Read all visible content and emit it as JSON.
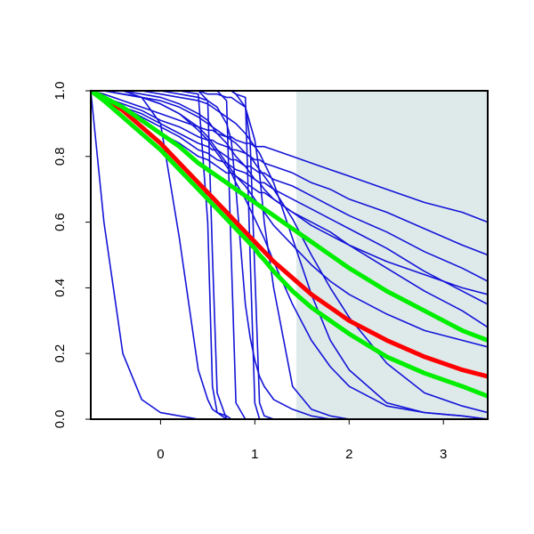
{
  "chart_data": {
    "type": "line",
    "xlim": [
      -0.74,
      3.47
    ],
    "ylim": [
      0,
      1
    ],
    "xticks": [
      0,
      1,
      2,
      3
    ],
    "yticks": [
      {
        "value": 0,
        "label": "0.0"
      },
      {
        "value": 0.2,
        "label": "0.2"
      },
      {
        "value": 0.4,
        "label": "0.4"
      },
      {
        "value": 0.6,
        "label": "0.6"
      },
      {
        "value": 0.8,
        "label": "0.8"
      },
      {
        "value": 1,
        "label": "1.0"
      }
    ],
    "shaded_region": {
      "xmin": 1.44,
      "xmax": 3.47,
      "color": "#deeaea"
    },
    "x": [
      -0.74,
      -0.6,
      -0.4,
      -0.2,
      0,
      0.2,
      0.4,
      0.5,
      0.55,
      0.6,
      0.7,
      0.75,
      0.8,
      0.9,
      0.95,
      1.0,
      1.05,
      1.1,
      1.2,
      1.4,
      1.6,
      1.8,
      2.0,
      2.4,
      2.8,
      3.2,
      3.47
    ],
    "series": [
      {
        "color": "#1414d8",
        "width": 1.6,
        "values": [
          1,
          0.6,
          0.2,
          0.06,
          0.02,
          0.01,
          0,
          0,
          0,
          0,
          0,
          0,
          0,
          0,
          0,
          0,
          0,
          0,
          0,
          0,
          0,
          0,
          0,
          0,
          0,
          0,
          0
        ]
      },
      {
        "color": "#1414d8",
        "width": 1.6,
        "values": [
          1,
          1,
          1,
          0.98,
          0.9,
          0.55,
          0.15,
          0.06,
          0.03,
          0.02,
          0.01,
          0,
          0,
          0,
          0,
          0,
          0,
          0,
          0,
          0,
          0,
          0,
          0,
          0,
          0,
          0,
          0
        ]
      },
      {
        "color": "#1414d8",
        "width": 1.6,
        "values": [
          1,
          1,
          1,
          1,
          1,
          1,
          0.99,
          0.6,
          0.1,
          0.02,
          0,
          0,
          0,
          0,
          0,
          0,
          0,
          0,
          0,
          0,
          0,
          0,
          0,
          0,
          0,
          0,
          0
        ]
      },
      {
        "color": "#1414d8",
        "width": 1.6,
        "values": [
          1,
          1,
          1,
          1,
          1,
          1,
          1,
          0.97,
          0.5,
          0.08,
          0,
          0,
          0,
          0,
          0,
          0,
          0,
          0,
          0,
          0,
          0,
          0,
          0,
          0,
          0,
          0,
          0
        ]
      },
      {
        "color": "#1414d8",
        "width": 1.6,
        "values": [
          1,
          1,
          1,
          1,
          1,
          1,
          1,
          1,
          1,
          1,
          0.97,
          0.5,
          0.05,
          0,
          0,
          0,
          0,
          0,
          0,
          0,
          0,
          0,
          0,
          0,
          0,
          0,
          0
        ]
      },
      {
        "color": "#1414d8",
        "width": 1.6,
        "values": [
          1,
          1,
          1,
          1,
          1,
          1,
          1,
          1,
          1,
          1,
          1,
          1,
          0.99,
          0.98,
          0.5,
          0.05,
          0,
          0,
          0,
          0,
          0,
          0,
          0,
          0,
          0,
          0,
          0
        ]
      },
      {
        "color": "#1414d8",
        "width": 1.6,
        "values": [
          1,
          1,
          1,
          1,
          1,
          1,
          1,
          1,
          1,
          1,
          1,
          1,
          0.99,
          0.95,
          0.85,
          0.45,
          0.05,
          0.01,
          0,
          0,
          0,
          0,
          0,
          0,
          0,
          0,
          0
        ]
      },
      {
        "color": "#1414d8",
        "width": 1.6,
        "values": [
          1,
          1,
          1,
          1,
          1,
          1,
          1,
          0.99,
          0.99,
          0.99,
          0.98,
          0.98,
          0.97,
          0.95,
          0.9,
          0.85,
          0.75,
          0.6,
          0.4,
          0.1,
          0.03,
          0.01,
          0,
          0,
          0,
          0,
          0
        ]
      },
      {
        "color": "#1414d8",
        "width": 1.6,
        "values": [
          1,
          1,
          1,
          1,
          0.99,
          0.98,
          0.97,
          0.96,
          0.95,
          0.94,
          0.92,
          0.91,
          0.9,
          0.87,
          0.85,
          0.83,
          0.81,
          0.78,
          0.72,
          0.55,
          0.38,
          0.24,
          0.15,
          0.05,
          0.02,
          0.01,
          0
        ]
      },
      {
        "color": "#1414d8",
        "width": 1.6,
        "values": [
          1,
          1,
          0.99,
          0.98,
          0.97,
          0.95,
          0.92,
          0.9,
          0.89,
          0.88,
          0.86,
          0.85,
          0.84,
          0.81,
          0.8,
          0.78,
          0.76,
          0.74,
          0.7,
          0.61,
          0.5,
          0.4,
          0.31,
          0.17,
          0.08,
          0.04,
          0.02
        ]
      },
      {
        "color": "#1414d8",
        "width": 1.6,
        "values": [
          1,
          1,
          0.99,
          0.98,
          0.96,
          0.93,
          0.88,
          0.85,
          0.83,
          0.81,
          0.77,
          0.75,
          0.72,
          0.67,
          0.64,
          0.61,
          0.58,
          0.55,
          0.48,
          0.35,
          0.24,
          0.16,
          0.1,
          0.04,
          0.02,
          0.01,
          0
        ]
      },
      {
        "color": "#1414d8",
        "width": 1.6,
        "values": [
          1,
          1,
          1,
          1,
          1,
          0.99,
          0.98,
          0.97,
          0.96,
          0.95,
          0.9,
          0.85,
          0.7,
          0.35,
          0.25,
          0.18,
          0.13,
          0.1,
          0.06,
          0.03,
          0.01,
          0,
          0,
          0,
          0,
          0,
          0
        ]
      },
      {
        "color": "#1414d8",
        "width": 1.6,
        "values": [
          1,
          0.99,
          0.97,
          0.95,
          0.93,
          0.91,
          0.89,
          0.88,
          0.88,
          0.87,
          0.86,
          0.86,
          0.85,
          0.84,
          0.84,
          0.83,
          0.83,
          0.83,
          0.82,
          0.8,
          0.78,
          0.76,
          0.74,
          0.7,
          0.66,
          0.63,
          0.6
        ]
      },
      {
        "color": "#1414d8",
        "width": 1.6,
        "values": [
          1,
          0.98,
          0.96,
          0.94,
          0.91,
          0.89,
          0.86,
          0.85,
          0.85,
          0.84,
          0.83,
          0.82,
          0.82,
          0.81,
          0.8,
          0.79,
          0.79,
          0.78,
          0.77,
          0.75,
          0.72,
          0.7,
          0.67,
          0.63,
          0.58,
          0.53,
          0.5
        ]
      },
      {
        "color": "#1414d8",
        "width": 1.6,
        "values": [
          1,
          0.98,
          0.95,
          0.93,
          0.9,
          0.87,
          0.84,
          0.83,
          0.82,
          0.82,
          0.8,
          0.79,
          0.79,
          0.77,
          0.77,
          0.76,
          0.75,
          0.75,
          0.73,
          0.71,
          0.68,
          0.65,
          0.62,
          0.57,
          0.51,
          0.46,
          0.42
        ]
      },
      {
        "color": "#1414d8",
        "width": 1.6,
        "values": [
          1,
          0.98,
          0.95,
          0.92,
          0.89,
          0.86,
          0.82,
          0.81,
          0.8,
          0.79,
          0.78,
          0.77,
          0.76,
          0.75,
          0.74,
          0.73,
          0.72,
          0.72,
          0.7,
          0.67,
          0.64,
          0.61,
          0.58,
          0.52,
          0.45,
          0.39,
          0.35
        ]
      },
      {
        "color": "#1414d8",
        "width": 1.6,
        "values": [
          1,
          0.98,
          0.94,
          0.91,
          0.87,
          0.84,
          0.8,
          0.79,
          0.78,
          0.77,
          0.75,
          0.75,
          0.74,
          0.72,
          0.71,
          0.7,
          0.69,
          0.69,
          0.67,
          0.63,
          0.6,
          0.57,
          0.53,
          0.46,
          0.39,
          0.33,
          0.28
        ]
      },
      {
        "color": "#1414d8",
        "width": 1.6,
        "values": [
          1,
          1,
          1,
          0.99,
          0.98,
          0.96,
          0.93,
          0.91,
          0.89,
          0.87,
          0.84,
          0.82,
          0.8,
          0.77,
          0.75,
          0.73,
          0.72,
          0.7,
          0.67,
          0.63,
          0.59,
          0.56,
          0.53,
          0.48,
          0.44,
          0.4,
          0.38
        ]
      },
      {
        "color": "#1414d8",
        "width": 1.6,
        "values": [
          1,
          1,
          0.99,
          0.98,
          0.96,
          0.93,
          0.89,
          0.86,
          0.84,
          0.82,
          0.78,
          0.76,
          0.74,
          0.71,
          0.69,
          0.67,
          0.65,
          0.63,
          0.59,
          0.53,
          0.47,
          0.42,
          0.38,
          0.32,
          0.27,
          0.24,
          0.22
        ]
      },
      {
        "color": "#ff0000",
        "width": 5,
        "values": [
          1,
          0.98,
          0.94,
          0.89,
          0.84,
          0.78,
          0.72,
          0.69,
          0.675,
          0.66,
          0.63,
          0.615,
          0.6,
          0.57,
          0.555,
          0.54,
          0.525,
          0.51,
          0.48,
          0.43,
          0.38,
          0.34,
          0.3,
          0.24,
          0.19,
          0.15,
          0.13
        ]
      },
      {
        "color": "#00ee00",
        "width": 5,
        "values": [
          1,
          0.98,
          0.95,
          0.91,
          0.87,
          0.83,
          0.78,
          0.76,
          0.75,
          0.74,
          0.72,
          0.71,
          0.7,
          0.68,
          0.67,
          0.66,
          0.65,
          0.64,
          0.62,
          0.58,
          0.54,
          0.5,
          0.46,
          0.39,
          0.33,
          0.27,
          0.24
        ]
      },
      {
        "color": "#00ee00",
        "width": 5,
        "values": [
          1,
          0.97,
          0.92,
          0.87,
          0.82,
          0.76,
          0.7,
          0.67,
          0.655,
          0.64,
          0.61,
          0.595,
          0.58,
          0.55,
          0.535,
          0.52,
          0.5,
          0.485,
          0.45,
          0.39,
          0.34,
          0.3,
          0.26,
          0.19,
          0.14,
          0.1,
          0.07
        ]
      }
    ]
  }
}
